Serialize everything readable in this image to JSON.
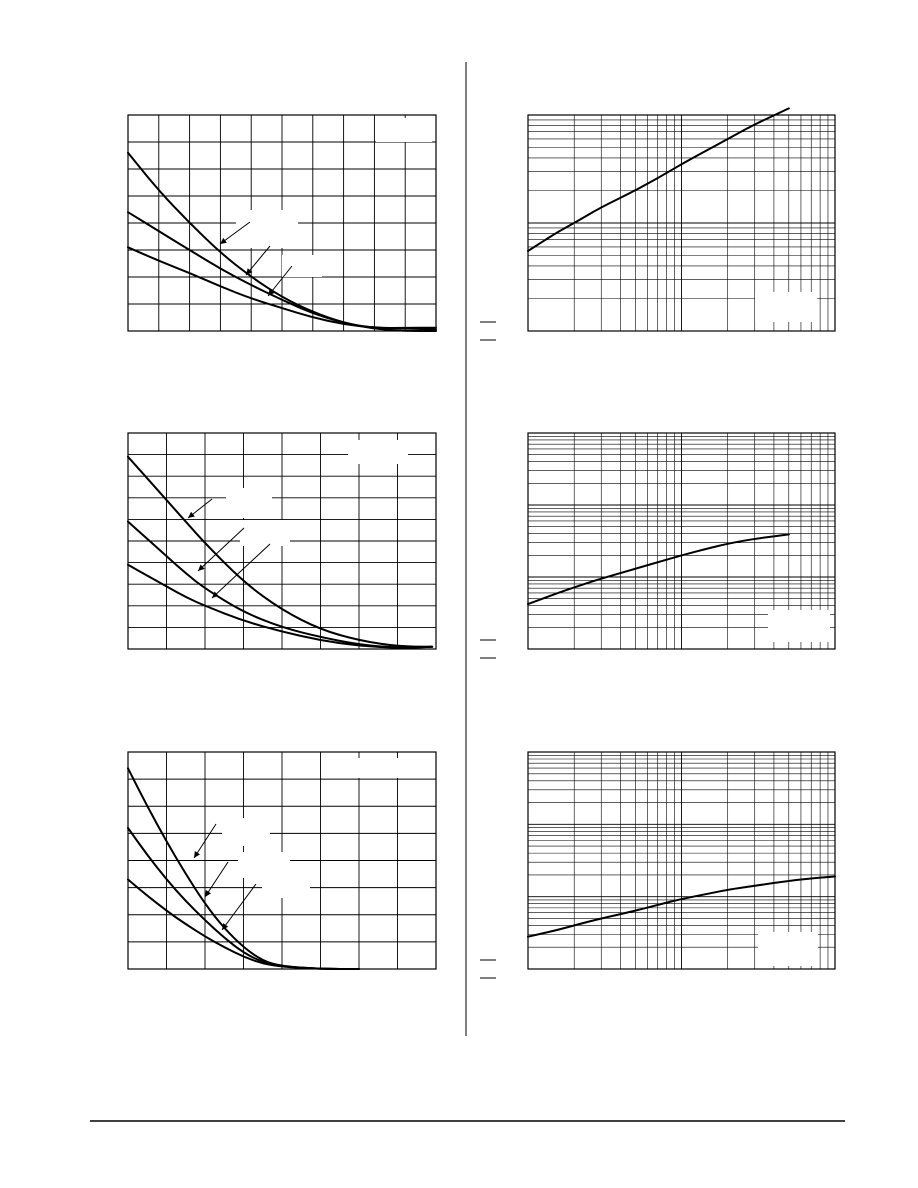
{
  "page": {
    "line_color": "#000000",
    "background": "#ffffff"
  },
  "chart_data": [
    {
      "type": "line",
      "x_divisions": 10,
      "y_divisions": 8,
      "xlim": [
        0,
        10
      ],
      "ylim": [
        0,
        8
      ],
      "grid": true,
      "series": [
        {
          "x": [
            0,
            1,
            2,
            3,
            4,
            5,
            6,
            7,
            8,
            9,
            10
          ],
          "y": [
            6.6,
            5.2,
            4.0,
            2.9,
            2.0,
            1.25,
            0.7,
            0.3,
            0.08,
            0.0,
            0.0
          ]
        },
        {
          "x": [
            0,
            1,
            2,
            3,
            4,
            5,
            6,
            7,
            8,
            9,
            10
          ],
          "y": [
            4.4,
            3.7,
            3.0,
            2.3,
            1.7,
            1.15,
            0.65,
            0.3,
            0.1,
            0.12,
            0.12
          ]
        },
        {
          "x": [
            0,
            1,
            2,
            3,
            4,
            5,
            6,
            7,
            8,
            9,
            10
          ],
          "y": [
            3.1,
            2.6,
            2.15,
            1.65,
            1.2,
            0.85,
            0.5,
            0.25,
            0.12,
            0.1,
            0.05
          ]
        }
      ]
    },
    {
      "type": "line",
      "x_scale": "log",
      "y_scale": "log",
      "x_decades": 2,
      "y_decades": 2,
      "grid": true,
      "series": [
        {
          "x": [
            1,
            1.5,
            2,
            3,
            5,
            7,
            10,
            15,
            20,
            30,
            50
          ],
          "y": [
            0.00055,
            0.0008,
            0.001,
            0.0014,
            0.002,
            0.0026,
            0.0035,
            0.0048,
            0.006,
            0.0082,
            0.0115
          ]
        }
      ]
    },
    {
      "type": "line",
      "x_divisions": 8,
      "y_divisions": 10,
      "xlim": [
        0,
        8
      ],
      "ylim": [
        0,
        10
      ],
      "grid": true,
      "series": [
        {
          "x": [
            0,
            0.5,
            1,
            1.5,
            2,
            3,
            4,
            5,
            6,
            7,
            7.9
          ],
          "y": [
            8.9,
            7.9,
            6.9,
            5.9,
            4.9,
            3.1,
            1.8,
            0.9,
            0.4,
            0.12,
            0.1
          ]
        },
        {
          "x": [
            0,
            0.5,
            1,
            1.5,
            2,
            3,
            4,
            5,
            6,
            7,
            7.9
          ],
          "y": [
            5.9,
            5.1,
            4.3,
            3.5,
            2.8,
            1.7,
            1.0,
            0.55,
            0.2,
            0.05,
            0.1
          ]
        },
        {
          "x": [
            0,
            0.5,
            1,
            1.5,
            2,
            3,
            4,
            5,
            6,
            7,
            7.9
          ],
          "y": [
            3.9,
            3.4,
            2.9,
            2.4,
            2.0,
            1.3,
            0.8,
            0.4,
            0.15,
            0.04,
            0.1
          ]
        }
      ]
    },
    {
      "type": "line",
      "x_scale": "log",
      "y_scale": "log",
      "x_decades": 2,
      "y_decades": 3,
      "grid": true,
      "series": [
        {
          "x": [
            1,
            1.5,
            2,
            3,
            5,
            7,
            10,
            15,
            20,
            30,
            50
          ],
          "y": [
            0.00042,
            0.00058,
            0.00072,
            0.00095,
            0.0013,
            0.0016,
            0.002,
            0.0025,
            0.0029,
            0.0034,
            0.0039
          ]
        }
      ]
    },
    {
      "type": "line",
      "x_divisions": 8,
      "y_divisions": 8,
      "xlim": [
        0,
        8
      ],
      "ylim": [
        0,
        8
      ],
      "grid": true,
      "series": [
        {
          "x": [
            0,
            0.5,
            1,
            1.5,
            2,
            2.5,
            3,
            3.5,
            4,
            5,
            6
          ],
          "y": [
            7.4,
            6.0,
            4.7,
            3.5,
            2.4,
            1.5,
            0.8,
            0.3,
            0.1,
            0.0,
            0.0
          ]
        },
        {
          "x": [
            0,
            0.5,
            1,
            1.5,
            2,
            2.5,
            3,
            3.5,
            4,
            5,
            6
          ],
          "y": [
            5.2,
            4.2,
            3.3,
            2.5,
            1.8,
            1.15,
            0.6,
            0.25,
            0.1,
            0.0,
            0.0
          ]
        },
        {
          "x": [
            0,
            0.5,
            1,
            1.5,
            2,
            2.5,
            3,
            3.5,
            4,
            5,
            6
          ],
          "y": [
            3.3,
            2.7,
            2.15,
            1.65,
            1.2,
            0.8,
            0.45,
            0.2,
            0.08,
            0.0,
            0.0
          ]
        }
      ]
    },
    {
      "type": "line",
      "x_scale": "log",
      "y_scale": "log",
      "x_decades": 2,
      "y_decades": 3,
      "grid": true,
      "series": [
        {
          "x": [
            1,
            1.5,
            2,
            3,
            5,
            7,
            10,
            15,
            20,
            30,
            50,
            75,
            100
          ],
          "y": [
            0.00028,
            0.00034,
            0.0004,
            0.0005,
            0.00064,
            0.00077,
            0.00093,
            0.0011,
            0.00125,
            0.00142,
            0.00165,
            0.00182,
            0.0019
          ]
        }
      ]
    }
  ]
}
